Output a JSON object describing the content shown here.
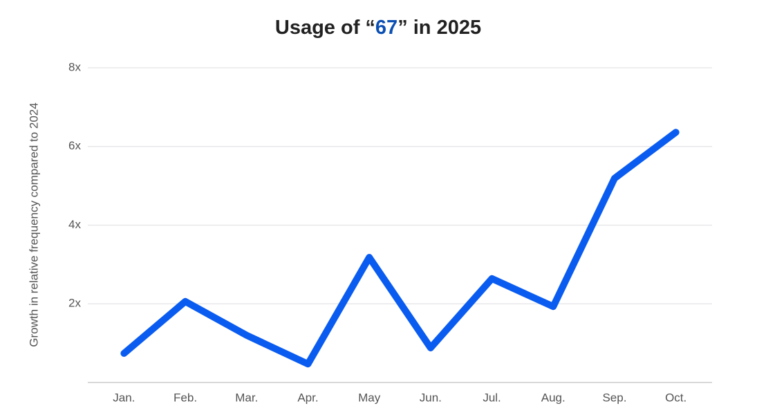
{
  "chart_data": {
    "type": "line",
    "title": "Usage of “67” in 2025",
    "title_highlight": "67",
    "title_highlight_color": "#0b4fb3",
    "y_label": "Growth in relative frequency compared to 2024",
    "categories": [
      "Jan.",
      "Feb.",
      "Mar.",
      "Apr.",
      "May",
      "Jun.",
      "Jul.",
      "Aug.",
      "Sep.",
      "Oct."
    ],
    "values": [
      0.74,
      2.06,
      1.2,
      0.47,
      3.18,
      0.88,
      2.64,
      1.93,
      5.19,
      6.36
    ],
    "color": "#0a5cf0",
    "ylim": [
      0,
      8
    ],
    "yticks": [
      {
        "value": 2,
        "label": "2x"
      },
      {
        "value": 4,
        "label": "4x"
      },
      {
        "value": 6,
        "label": "6x"
      },
      {
        "value": 8,
        "label": "8x"
      }
    ],
    "grid": true
  }
}
